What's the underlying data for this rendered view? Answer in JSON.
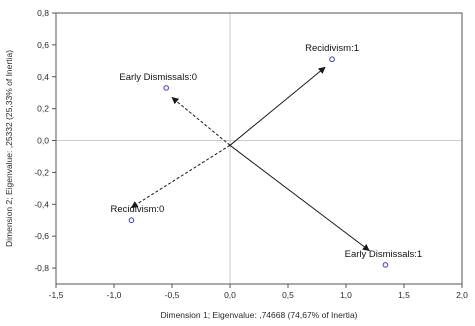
{
  "chart_data": {
    "type": "scatter",
    "title": "",
    "xlabel": "Dimension 1; Eigenvalue: ,74668 (74,67% of Inertia)",
    "ylabel": "Dimension 2; Eigenvalue: ,25332 (25,33% of Inertia)",
    "xlim": [
      -1.5,
      2.0
    ],
    "ylim": [
      -0.9,
      0.8
    ],
    "x_ticks": [
      "-1,5",
      "-1,0",
      "-0,5",
      "0,0",
      "0,5",
      "1,0",
      "1,5",
      "2,0"
    ],
    "y_ticks": [
      "-0,8",
      "-0,6",
      "-0,4",
      "-0,2",
      "0,0",
      "0,2",
      "0,4",
      "0,6",
      "0,8"
    ],
    "grid": false,
    "points": [
      {
        "label": "Recidivism:1",
        "x": 0.88,
        "y": 0.51
      },
      {
        "label": "Early Dismissals:0",
        "x": -0.55,
        "y": 0.33
      },
      {
        "label": "Recidivism:0",
        "x": -0.85,
        "y": -0.5
      },
      {
        "label": "Early Dismissals:1",
        "x": 1.34,
        "y": -0.78
      }
    ],
    "arrows": [
      {
        "from": [
          0.0,
          -0.03
        ],
        "to": [
          0.82,
          0.46
        ],
        "style": "solid"
      },
      {
        "from": [
          0.0,
          -0.03
        ],
        "to": [
          1.2,
          -0.69
        ],
        "style": "solid"
      },
      {
        "from": [
          0.0,
          -0.03
        ],
        "to": [
          -0.5,
          0.27
        ],
        "style": "dashed"
      },
      {
        "from": [
          0.0,
          -0.03
        ],
        "to": [
          -0.85,
          -0.42
        ],
        "style": "dashed"
      }
    ],
    "colors": {
      "point": "#3b3bdb",
      "arrow": "#1a1a1a",
      "frame": "#555555"
    }
  }
}
